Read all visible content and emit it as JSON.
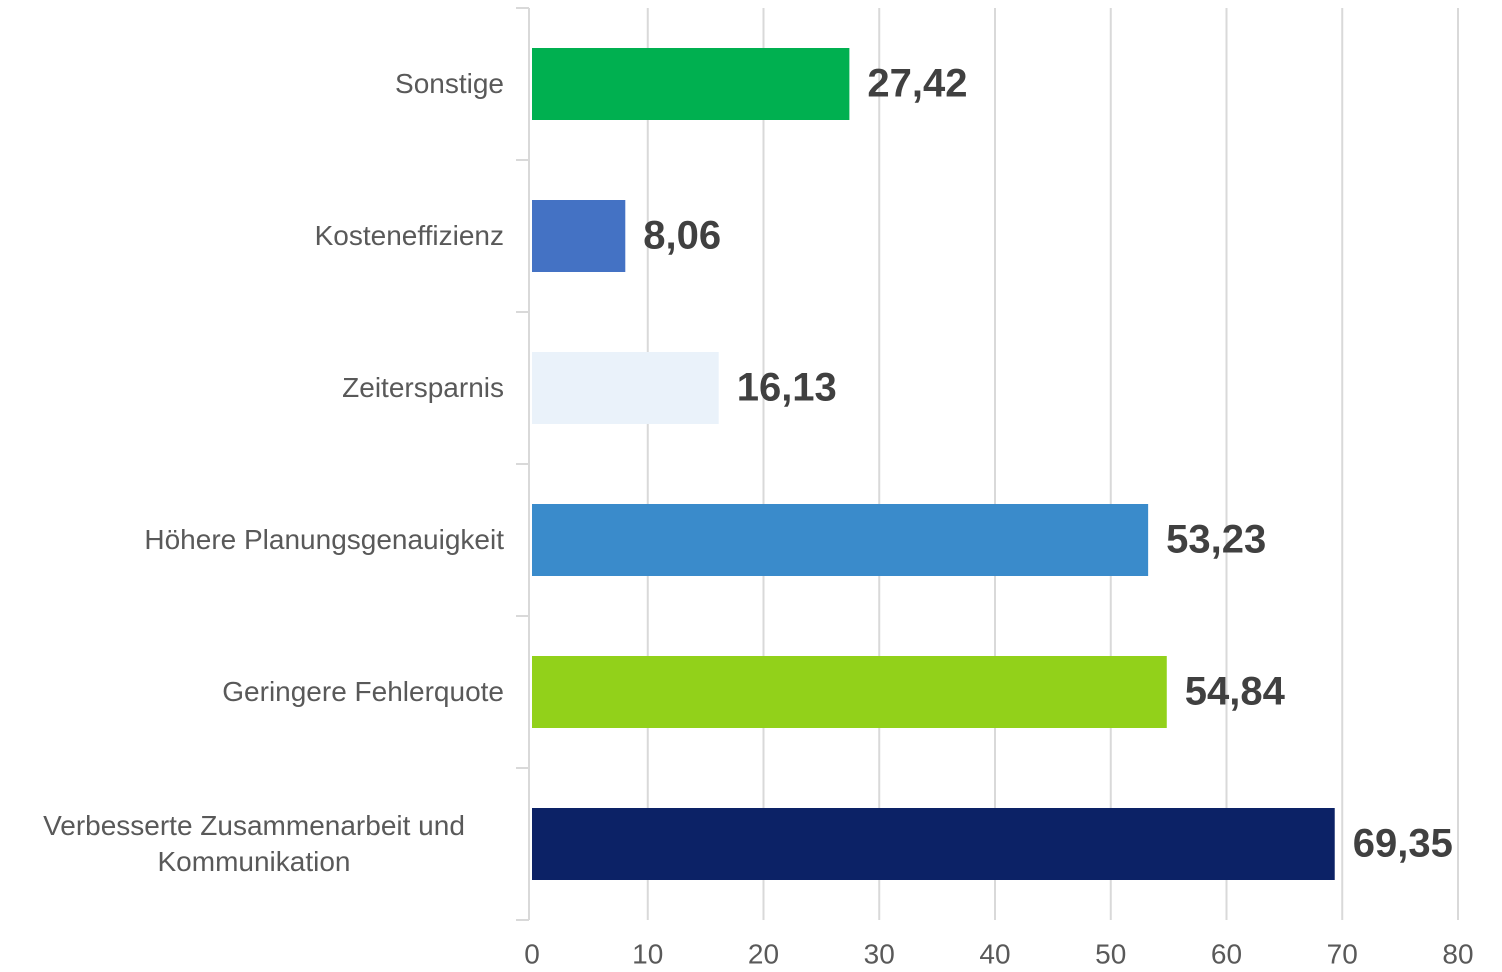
{
  "chart_data": {
    "type": "bar",
    "orientation": "horizontal",
    "categories": [
      "Sonstige",
      "Kosteneffizienz",
      "Zeitersparnis",
      "Höhere Planungsgenauigkeit",
      "Geringere Fehlerquote",
      "Verbesserte Zusammenarbeit und Kommunikation"
    ],
    "values": [
      27.42,
      8.06,
      16.13,
      53.23,
      54.84,
      69.35
    ],
    "value_labels": [
      "27,42",
      "8,06",
      "16,13",
      "53,23",
      "54,84",
      "69,35"
    ],
    "colors": [
      "#00b050",
      "#4472c4",
      "#eaf2fa",
      "#3a8bcb",
      "#92d11a",
      "#0c2266"
    ],
    "xlim": [
      0,
      80
    ],
    "xticks": [
      0,
      10,
      20,
      30,
      40,
      50,
      60,
      70,
      80
    ],
    "grid": true
  }
}
